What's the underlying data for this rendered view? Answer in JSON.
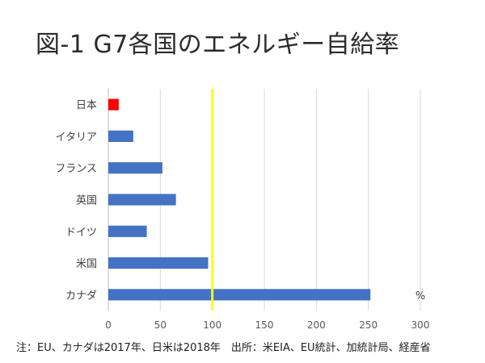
{
  "title": "図-1 G7各国のエネルギー自給率",
  "note": "注：EU、カナダは2017年、日米は2018年　出所：米EIA、EU統計、加統計局、経産省",
  "chart_data": {
    "type": "bar",
    "orientation": "horizontal",
    "categories": [
      "日本",
      "イタリア",
      "フランス",
      "英国",
      "ドイツ",
      "米国",
      "カナダ"
    ],
    "values": [
      10,
      24,
      52,
      65,
      37,
      96,
      252
    ],
    "colors": [
      "#ff0000",
      "#4472c4",
      "#4472c4",
      "#4472c4",
      "#4472c4",
      "#4472c4",
      "#4472c4"
    ],
    "xlim": [
      0,
      300
    ],
    "xticks": [
      0,
      50,
      100,
      150,
      200,
      250,
      300
    ],
    "unit_label": "%",
    "reference_line": {
      "value": 100,
      "color": "#ffff00"
    },
    "grid": "vertical",
    "legend": "none"
  }
}
